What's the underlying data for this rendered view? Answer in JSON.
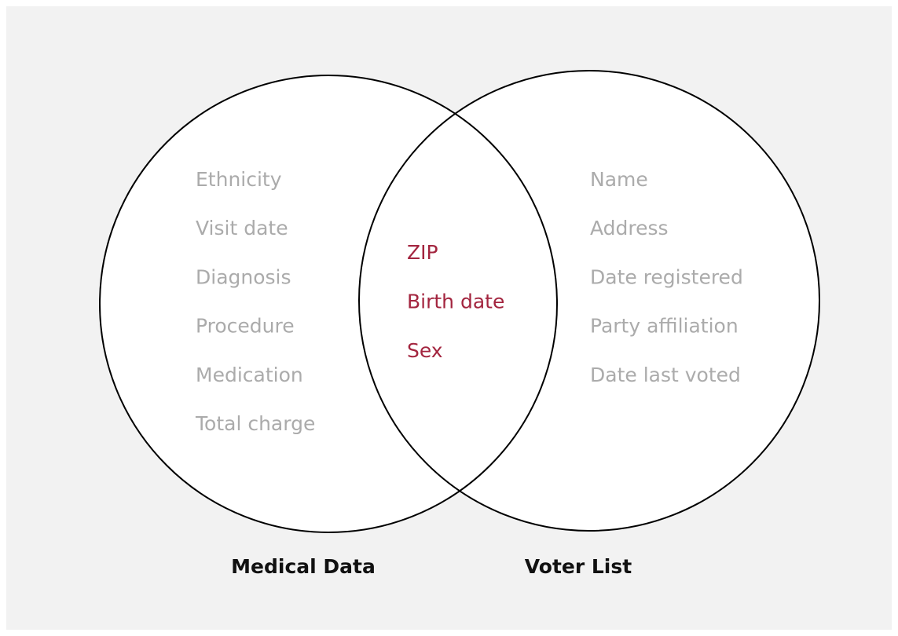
{
  "sets": [
    {
      "label": "Medical Data",
      "items": [
        "Ethnicity",
        "Visit date",
        "Diagnosis",
        "Procedure",
        "Medication",
        "Total charge"
      ]
    },
    {
      "label": "Voter List",
      "items": [
        "Name",
        "Address",
        "Date registered",
        "Party affiliation",
        "Date last voted"
      ]
    }
  ],
  "intersection": {
    "items": [
      "ZIP",
      "Birth date",
      "Sex"
    ]
  }
}
